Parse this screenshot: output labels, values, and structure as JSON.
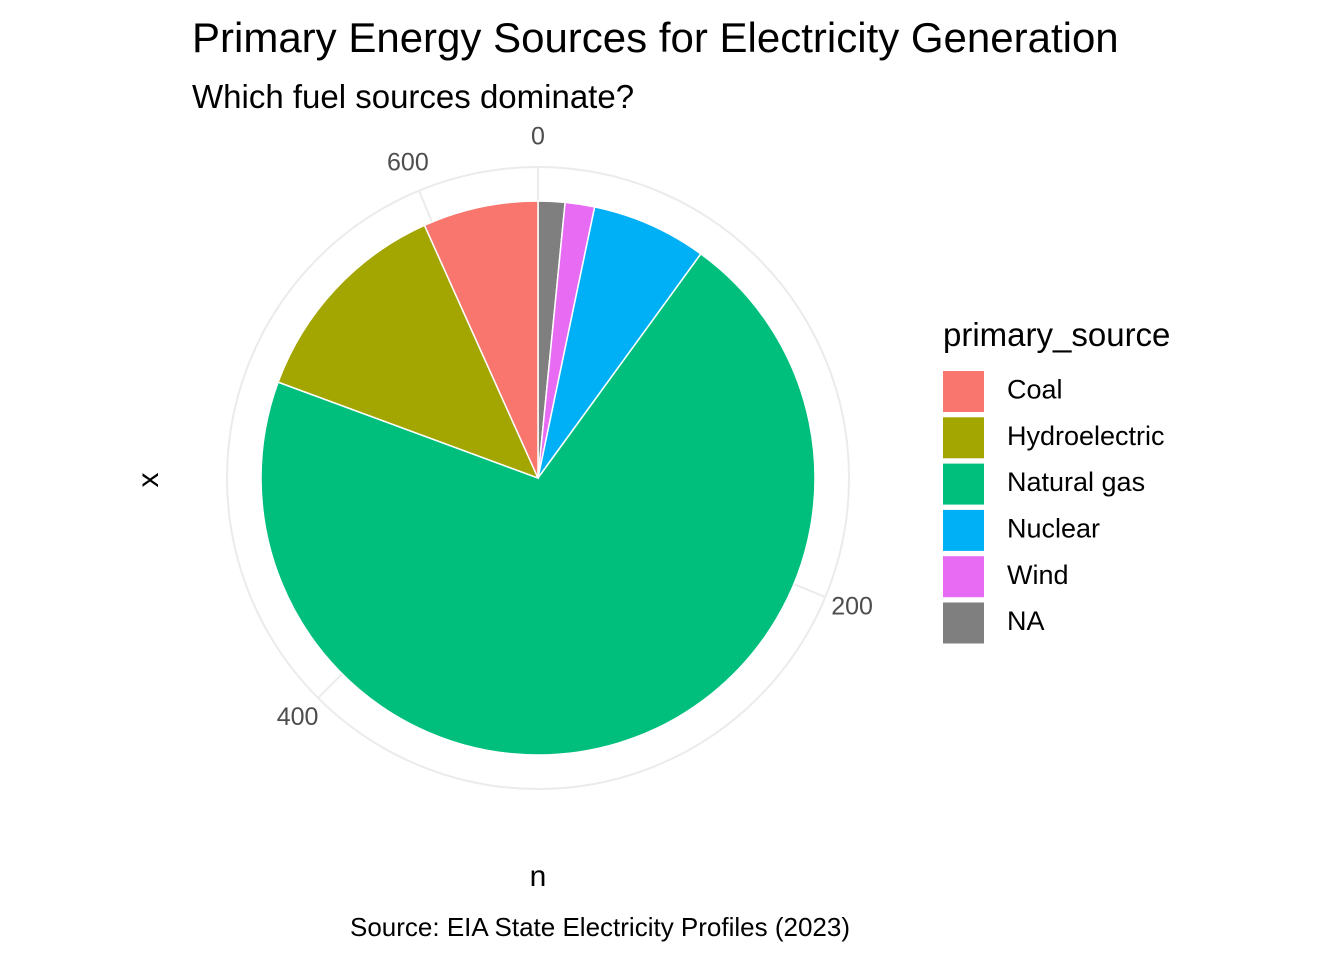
{
  "chart_data": {
    "type": "pie",
    "title": "Primary Energy Sources for Electricity Generation",
    "subtitle": "Which fuel sources dominate?",
    "xlabel": "n",
    "ylabel": "x",
    "caption": "Source: EIA State Electricity Profiles (2023)",
    "legend_title": "primary_source",
    "legend_position": "right",
    "axis_ticks": [
      {
        "value": 0,
        "label": "0"
      },
      {
        "value": 200,
        "label": "200"
      },
      {
        "value": 400,
        "label": "400"
      },
      {
        "value": 600,
        "label": "600"
      }
    ],
    "total": 640,
    "slices": [
      {
        "label": "NA",
        "value": 10,
        "color": "#7f7f7f"
      },
      {
        "label": "Wind",
        "value": 11,
        "color": "#e76bf3"
      },
      {
        "label": "Nuclear",
        "value": 43,
        "color": "#00b0f6"
      },
      {
        "label": "Natural gas",
        "value": 452,
        "color": "#00bf7d"
      },
      {
        "label": "Hydroelectric",
        "value": 81,
        "color": "#a3a500"
      },
      {
        "label": "Coal",
        "value": 43,
        "color": "#f8766d"
      }
    ],
    "legend": [
      {
        "label": "Coal",
        "color": "#f8766d"
      },
      {
        "label": "Hydroelectric",
        "color": "#a3a500"
      },
      {
        "label": "Natural gas",
        "color": "#00bf7d"
      },
      {
        "label": "Nuclear",
        "color": "#00b0f6"
      },
      {
        "label": "Wind",
        "color": "#e76bf3"
      },
      {
        "label": "NA",
        "color": "#7f7f7f"
      }
    ],
    "grid": true
  }
}
